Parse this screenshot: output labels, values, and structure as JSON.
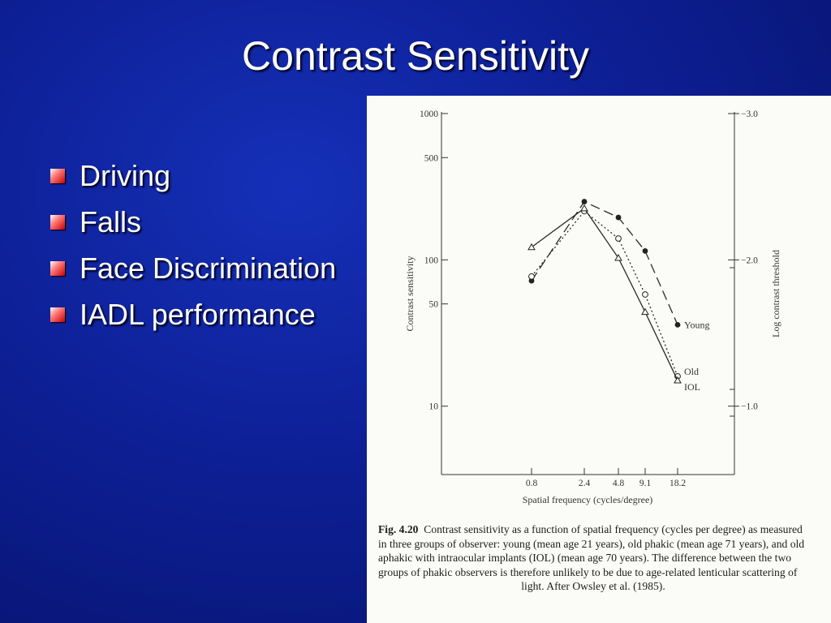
{
  "slide": {
    "title": "Contrast Sensitivity",
    "bullets": [
      "Driving",
      "Falls",
      "Face Discrimination",
      "IADL performance"
    ],
    "colors": {
      "background": "#0d1f95",
      "bullet": "#d40000",
      "text": "#ffffff"
    }
  },
  "figure": {
    "caption_label": "Fig. 4.20",
    "caption_text": "Contrast sensitivity as a function of spatial frequency (cycles per degree) as measured in three groups of observer: young (mean age 21 years), old phakic (mean age 71 years), and old aphakic with intraocular implants (IOL) (mean age 70 years). The difference between the two groups of phakic observers is therefore unlikely to be due to age-related lenticular scattering of",
    "caption_end": "light. After Owsley et al. (1985)."
  },
  "chart_data": {
    "type": "line",
    "xlabel": "Spatial frequency (cycles/degree)",
    "ylabel": "Contrast sensitivity",
    "ylabel_right": "Log contrast threshold",
    "x_ticks": [
      "0.8",
      "2.4",
      "4.8",
      "9.1",
      "18.2"
    ],
    "y_ticks_left": [
      "1000",
      "500",
      "100",
      "50",
      "10"
    ],
    "y_tick_values_left": [
      1000,
      500,
      100,
      50,
      10
    ],
    "y_ticks_right": [
      "−3.0",
      "−2.0",
      "−1.0"
    ],
    "y_tick_values_right": [
      -3.0,
      -2.0,
      -1.0
    ],
    "y_scale": "log",
    "ylim": [
      3,
      1000
    ],
    "series": [
      {
        "name": "Young",
        "marker": "filled-circle",
        "line": "dashed",
        "values": [
          72,
          250,
          195,
          115,
          36
        ]
      },
      {
        "name": "Old",
        "marker": "open-circle",
        "line": "dotted",
        "values": [
          77,
          215,
          140,
          58,
          16
        ]
      },
      {
        "name": "IOL",
        "marker": "open-triangle",
        "line": "solid",
        "values": [
          122,
          225,
          103,
          44,
          15
        ]
      }
    ]
  }
}
